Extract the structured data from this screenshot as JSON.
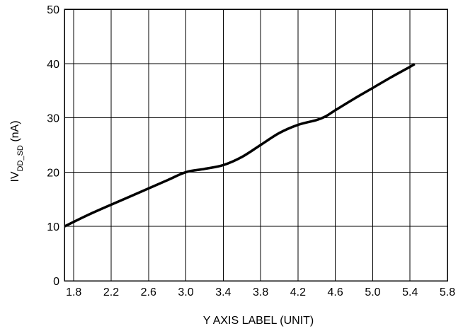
{
  "chart_data": {
    "type": "line",
    "xlabel": "Y AXIS LABEL (UNIT)",
    "ylabel": {
      "prefix": "IV",
      "subscript": "DD_SD",
      "suffix": " (nA)"
    },
    "xlim": [
      1.7,
      5.8
    ],
    "ylim": [
      0,
      50
    ],
    "x_ticks": [
      {
        "value": 1.8,
        "label": "1.8"
      },
      {
        "value": 2.2,
        "label": "2.2"
      },
      {
        "value": 2.6,
        "label": "2.6"
      },
      {
        "value": 3.0,
        "label": "3.0"
      },
      {
        "value": 3.4,
        "label": "3.4"
      },
      {
        "value": 3.8,
        "label": "3.8"
      },
      {
        "value": 4.2,
        "label": "4.2"
      },
      {
        "value": 4.6,
        "label": "4.6"
      },
      {
        "value": 5.0,
        "label": "5.0"
      },
      {
        "value": 5.4,
        "label": "5.4"
      },
      {
        "value": 5.8,
        "label": "5.8"
      }
    ],
    "y_ticks": [
      {
        "value": 0,
        "label": "0"
      },
      {
        "value": 10,
        "label": "10"
      },
      {
        "value": 20,
        "label": "20"
      },
      {
        "value": 30,
        "label": "30"
      },
      {
        "value": 40,
        "label": "40"
      },
      {
        "value": 50,
        "label": "50"
      }
    ],
    "grid": true,
    "legend": "none",
    "series": [
      {
        "color": "#000000",
        "points": [
          {
            "x": 1.7,
            "y": 10.0
          },
          {
            "x": 2.0,
            "y": 12.5
          },
          {
            "x": 2.4,
            "y": 15.5
          },
          {
            "x": 2.8,
            "y": 18.5
          },
          {
            "x": 3.0,
            "y": 20.0
          },
          {
            "x": 3.2,
            "y": 20.6
          },
          {
            "x": 3.4,
            "y": 21.3
          },
          {
            "x": 3.6,
            "y": 22.8
          },
          {
            "x": 3.8,
            "y": 25.0
          },
          {
            "x": 4.0,
            "y": 27.2
          },
          {
            "x": 4.2,
            "y": 28.7
          },
          {
            "x": 4.4,
            "y": 29.6
          },
          {
            "x": 4.5,
            "y": 30.3
          },
          {
            "x": 4.6,
            "y": 31.4
          },
          {
            "x": 4.8,
            "y": 33.5
          },
          {
            "x": 5.0,
            "y": 35.5
          },
          {
            "x": 5.2,
            "y": 37.5
          },
          {
            "x": 5.4,
            "y": 39.4
          },
          {
            "x": 5.45,
            "y": 39.9
          }
        ]
      }
    ]
  }
}
